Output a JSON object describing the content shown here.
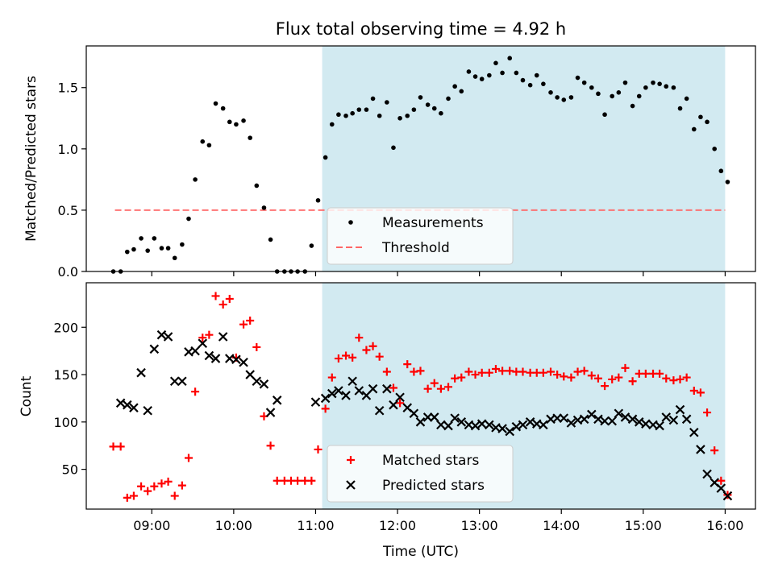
{
  "chart_data": [
    {
      "type": "scatter",
      "title": "Flux total observing time = 4.92 h",
      "ylabel": "Matched/Predicted stars",
      "xlabel": "",
      "x_unit": "hours UTC",
      "xlim": [
        8.2,
        16.37
      ],
      "ylim": [
        0,
        1.84
      ],
      "yticks": [
        0.0,
        0.5,
        1.0,
        1.5
      ],
      "ytick_labels": [
        "0.0",
        "0.5",
        "1.0",
        "1.5"
      ],
      "shaded_interval": [
        11.08,
        16.0
      ],
      "shade_color": "#add8e6",
      "legend_position": "lower-center",
      "threshold": {
        "name": "Threshold",
        "y": 0.5,
        "x_range": [
          8.55,
          16.0
        ],
        "color": "#ff6666"
      },
      "series": [
        {
          "name": "Measurements",
          "marker": "dot",
          "color": "#000000",
          "x": [
            8.53,
            8.62,
            8.7,
            8.78,
            8.87,
            8.95,
            9.03,
            9.12,
            9.2,
            9.28,
            9.37,
            9.45,
            9.53,
            9.62,
            9.7,
            9.78,
            9.87,
            9.95,
            10.03,
            10.12,
            10.2,
            10.28,
            10.37,
            10.45,
            10.53,
            10.62,
            10.7,
            10.78,
            10.87,
            10.95,
            11.03,
            11.12,
            11.2,
            11.28,
            11.37,
            11.45,
            11.53,
            11.62,
            11.7,
            11.78,
            11.87,
            11.95,
            12.03,
            12.12,
            12.2,
            12.28,
            12.37,
            12.45,
            12.53,
            12.62,
            12.7,
            12.78,
            12.87,
            12.95,
            13.03,
            13.12,
            13.2,
            13.28,
            13.37,
            13.45,
            13.53,
            13.62,
            13.7,
            13.78,
            13.87,
            13.95,
            14.03,
            14.12,
            14.2,
            14.28,
            14.37,
            14.45,
            14.53,
            14.62,
            14.7,
            14.78,
            14.87,
            14.95,
            15.03,
            15.12,
            15.2,
            15.28,
            15.37,
            15.45,
            15.53,
            15.62,
            15.7,
            15.78,
            15.87,
            15.95,
            16.03
          ],
          "y": [
            0.0,
            0.0,
            0.16,
            0.18,
            0.27,
            0.17,
            0.27,
            0.19,
            0.19,
            0.11,
            0.22,
            0.43,
            0.75,
            1.06,
            1.03,
            1.37,
            1.33,
            1.22,
            1.2,
            1.23,
            1.09,
            0.7,
            0.52,
            0.26,
            0.0,
            0.0,
            0.0,
            0.0,
            0.0,
            0.21,
            0.58,
            0.93,
            1.2,
            1.28,
            1.27,
            1.29,
            1.32,
            1.32,
            1.41,
            1.27,
            1.38,
            1.01,
            1.25,
            1.27,
            1.32,
            1.42,
            1.36,
            1.33,
            1.29,
            1.41,
            1.51,
            1.47,
            1.63,
            1.59,
            1.57,
            1.6,
            1.7,
            1.62,
            1.74,
            1.62,
            1.56,
            1.52,
            1.6,
            1.53,
            1.46,
            1.42,
            1.4,
            1.42,
            1.58,
            1.54,
            1.5,
            1.45,
            1.28,
            1.43,
            1.46,
            1.54,
            1.35,
            1.43,
            1.5,
            1.54,
            1.53,
            1.51,
            1.5,
            1.33,
            1.41,
            1.16,
            1.26,
            1.22,
            1.0,
            0.82,
            0.73
          ]
        }
      ]
    },
    {
      "type": "scatter",
      "title": "",
      "ylabel": "Count",
      "xlabel": "Time (UTC)",
      "x_unit": "hours UTC",
      "xlim": [
        8.2,
        16.37
      ],
      "ylim": [
        8,
        247
      ],
      "yticks": [
        50,
        100,
        150,
        200
      ],
      "ytick_labels": [
        "50",
        "100",
        "150",
        "200"
      ],
      "xticks": [
        9,
        10,
        11,
        12,
        13,
        14,
        15,
        16
      ],
      "xtick_labels": [
        "09:00",
        "10:00",
        "11:00",
        "12:00",
        "13:00",
        "14:00",
        "15:00",
        "16:00"
      ],
      "shaded_interval": [
        11.08,
        16.0
      ],
      "shade_color": "#add8e6",
      "legend_position": "lower-center",
      "series": [
        {
          "name": "Matched stars",
          "marker": "plus",
          "color": "#ff0000",
          "x": [
            8.53,
            8.62,
            8.7,
            8.78,
            8.87,
            8.95,
            9.03,
            9.12,
            9.2,
            9.28,
            9.37,
            9.45,
            9.53,
            9.62,
            9.7,
            9.78,
            9.87,
            9.95,
            10.03,
            10.12,
            10.2,
            10.28,
            10.37,
            10.45,
            10.53,
            10.62,
            10.7,
            10.78,
            10.87,
            10.95,
            11.03,
            11.12,
            11.2,
            11.28,
            11.37,
            11.45,
            11.53,
            11.62,
            11.7,
            11.78,
            11.87,
            11.95,
            12.03,
            12.12,
            12.2,
            12.28,
            12.37,
            12.45,
            12.53,
            12.62,
            12.7,
            12.78,
            12.87,
            12.95,
            13.03,
            13.12,
            13.2,
            13.28,
            13.37,
            13.45,
            13.53,
            13.62,
            13.7,
            13.78,
            13.87,
            13.95,
            14.03,
            14.12,
            14.2,
            14.28,
            14.37,
            14.45,
            14.53,
            14.62,
            14.7,
            14.78,
            14.87,
            14.95,
            15.03,
            15.12,
            15.2,
            15.28,
            15.37,
            15.45,
            15.53,
            15.62,
            15.7,
            15.78,
            15.87,
            15.95,
            16.03
          ],
          "y": [
            74,
            74,
            20,
            22,
            32,
            27,
            32,
            35,
            37,
            22,
            33,
            62,
            132,
            189,
            192,
            233,
            224,
            230,
            168,
            203,
            207,
            179,
            106,
            75,
            38,
            38,
            38,
            38,
            38,
            38,
            71,
            114,
            147,
            167,
            170,
            168,
            189,
            176,
            180,
            169,
            153,
            136,
            120,
            161,
            153,
            154,
            135,
            141,
            135,
            137,
            146,
            147,
            153,
            150,
            152,
            152,
            156,
            154,
            154,
            153,
            153,
            152,
            152,
            152,
            153,
            150,
            148,
            147,
            153,
            154,
            149,
            146,
            138,
            145,
            147,
            157,
            143,
            151,
            151,
            151,
            151,
            146,
            144,
            145,
            147,
            133,
            131,
            110,
            70,
            38,
            23
          ]
        },
        {
          "name": "Predicted stars",
          "marker": "x",
          "color": "#000000",
          "x": [
            8.62,
            8.7,
            8.78,
            8.87,
            8.95,
            9.03,
            9.12,
            9.2,
            9.28,
            9.37,
            9.45,
            9.53,
            9.62,
            9.7,
            9.78,
            9.87,
            9.95,
            10.03,
            10.12,
            10.2,
            10.28,
            10.37,
            10.45,
            10.53,
            11.0,
            11.12,
            11.2,
            11.28,
            11.37,
            11.45,
            11.53,
            11.62,
            11.7,
            11.78,
            11.87,
            11.95,
            12.03,
            12.12,
            12.2,
            12.28,
            12.37,
            12.45,
            12.53,
            12.62,
            12.7,
            12.78,
            12.87,
            12.95,
            13.03,
            13.12,
            13.2,
            13.28,
            13.37,
            13.45,
            13.53,
            13.62,
            13.7,
            13.78,
            13.87,
            13.95,
            14.03,
            14.12,
            14.2,
            14.28,
            14.37,
            14.45,
            14.53,
            14.62,
            14.7,
            14.78,
            14.87,
            14.95,
            15.03,
            15.12,
            15.2,
            15.28,
            15.37,
            15.45,
            15.53,
            15.62,
            15.7,
            15.78,
            15.87,
            15.95,
            16.03
          ],
          "y": [
            120,
            118,
            115,
            152,
            112,
            177,
            192,
            190,
            143,
            143,
            174,
            175,
            183,
            170,
            167,
            190,
            167,
            166,
            163,
            150,
            143,
            140,
            110,
            123,
            121,
            125,
            130,
            133,
            128,
            143,
            133,
            128,
            135,
            112,
            135,
            118,
            126,
            115,
            109,
            100,
            105,
            105,
            97,
            96,
            104,
            100,
            97,
            96,
            98,
            97,
            94,
            93,
            90,
            95,
            97,
            100,
            98,
            97,
            103,
            104,
            104,
            99,
            102,
            103,
            108,
            103,
            101,
            101,
            109,
            105,
            103,
            100,
            98,
            97,
            96,
            105,
            102,
            113,
            103,
            89,
            71,
            45,
            36,
            30,
            22
          ]
        }
      ]
    }
  ]
}
